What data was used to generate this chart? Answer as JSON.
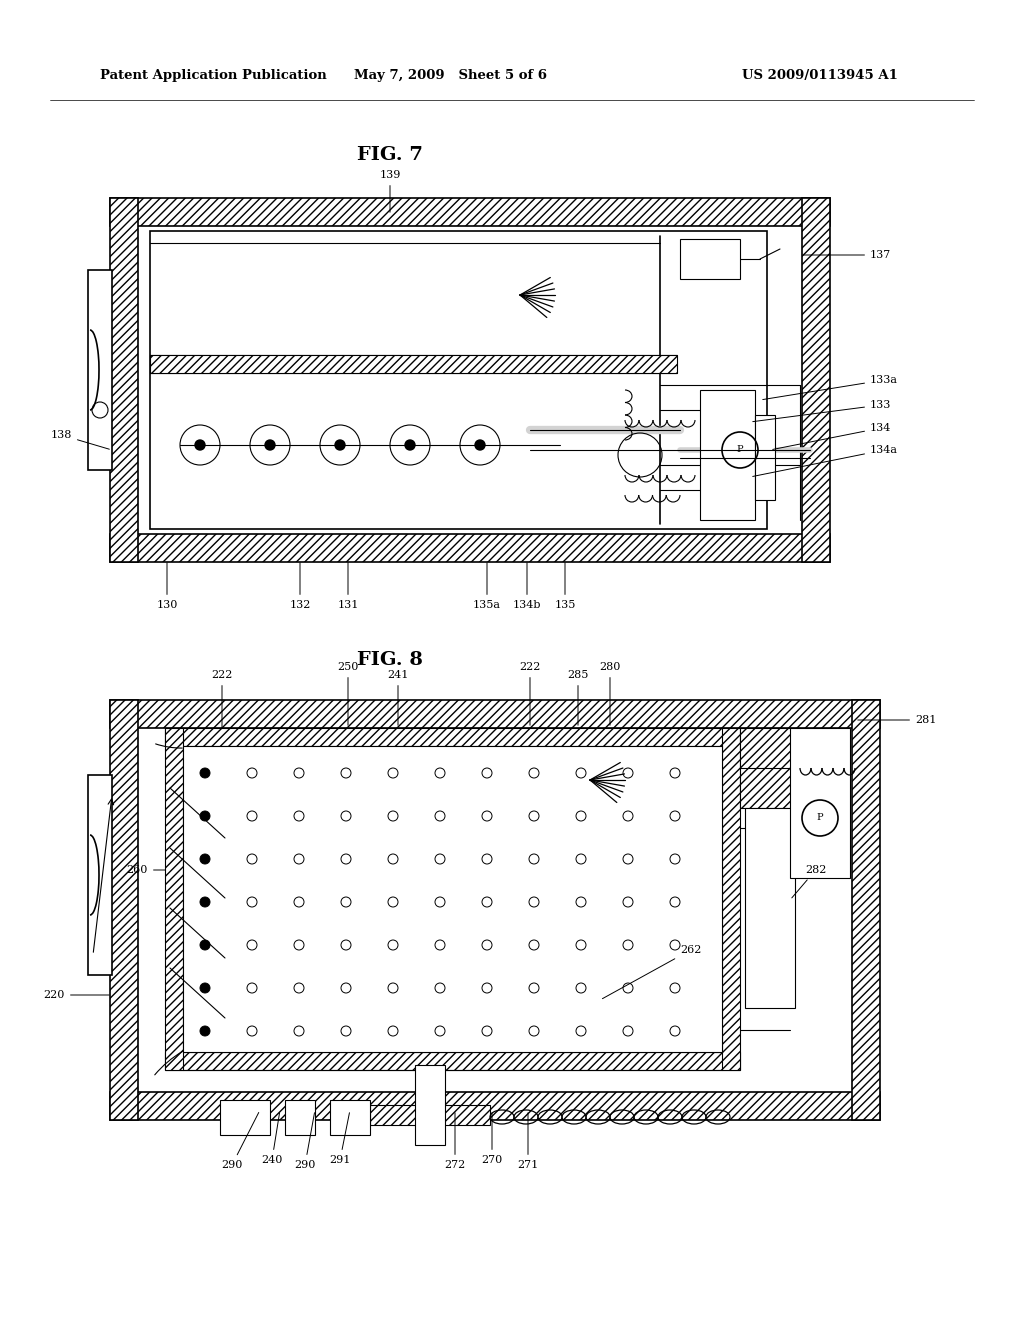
{
  "bg_color": "#ffffff",
  "header_left": "Patent Application Publication",
  "header_mid": "May 7, 2009   Sheet 5 of 6",
  "header_right": "US 2009/0113945 A1",
  "fig7_title": "FIG. 7",
  "fig8_title": "FIG. 8",
  "page_width": 1.0,
  "page_height": 1.0
}
